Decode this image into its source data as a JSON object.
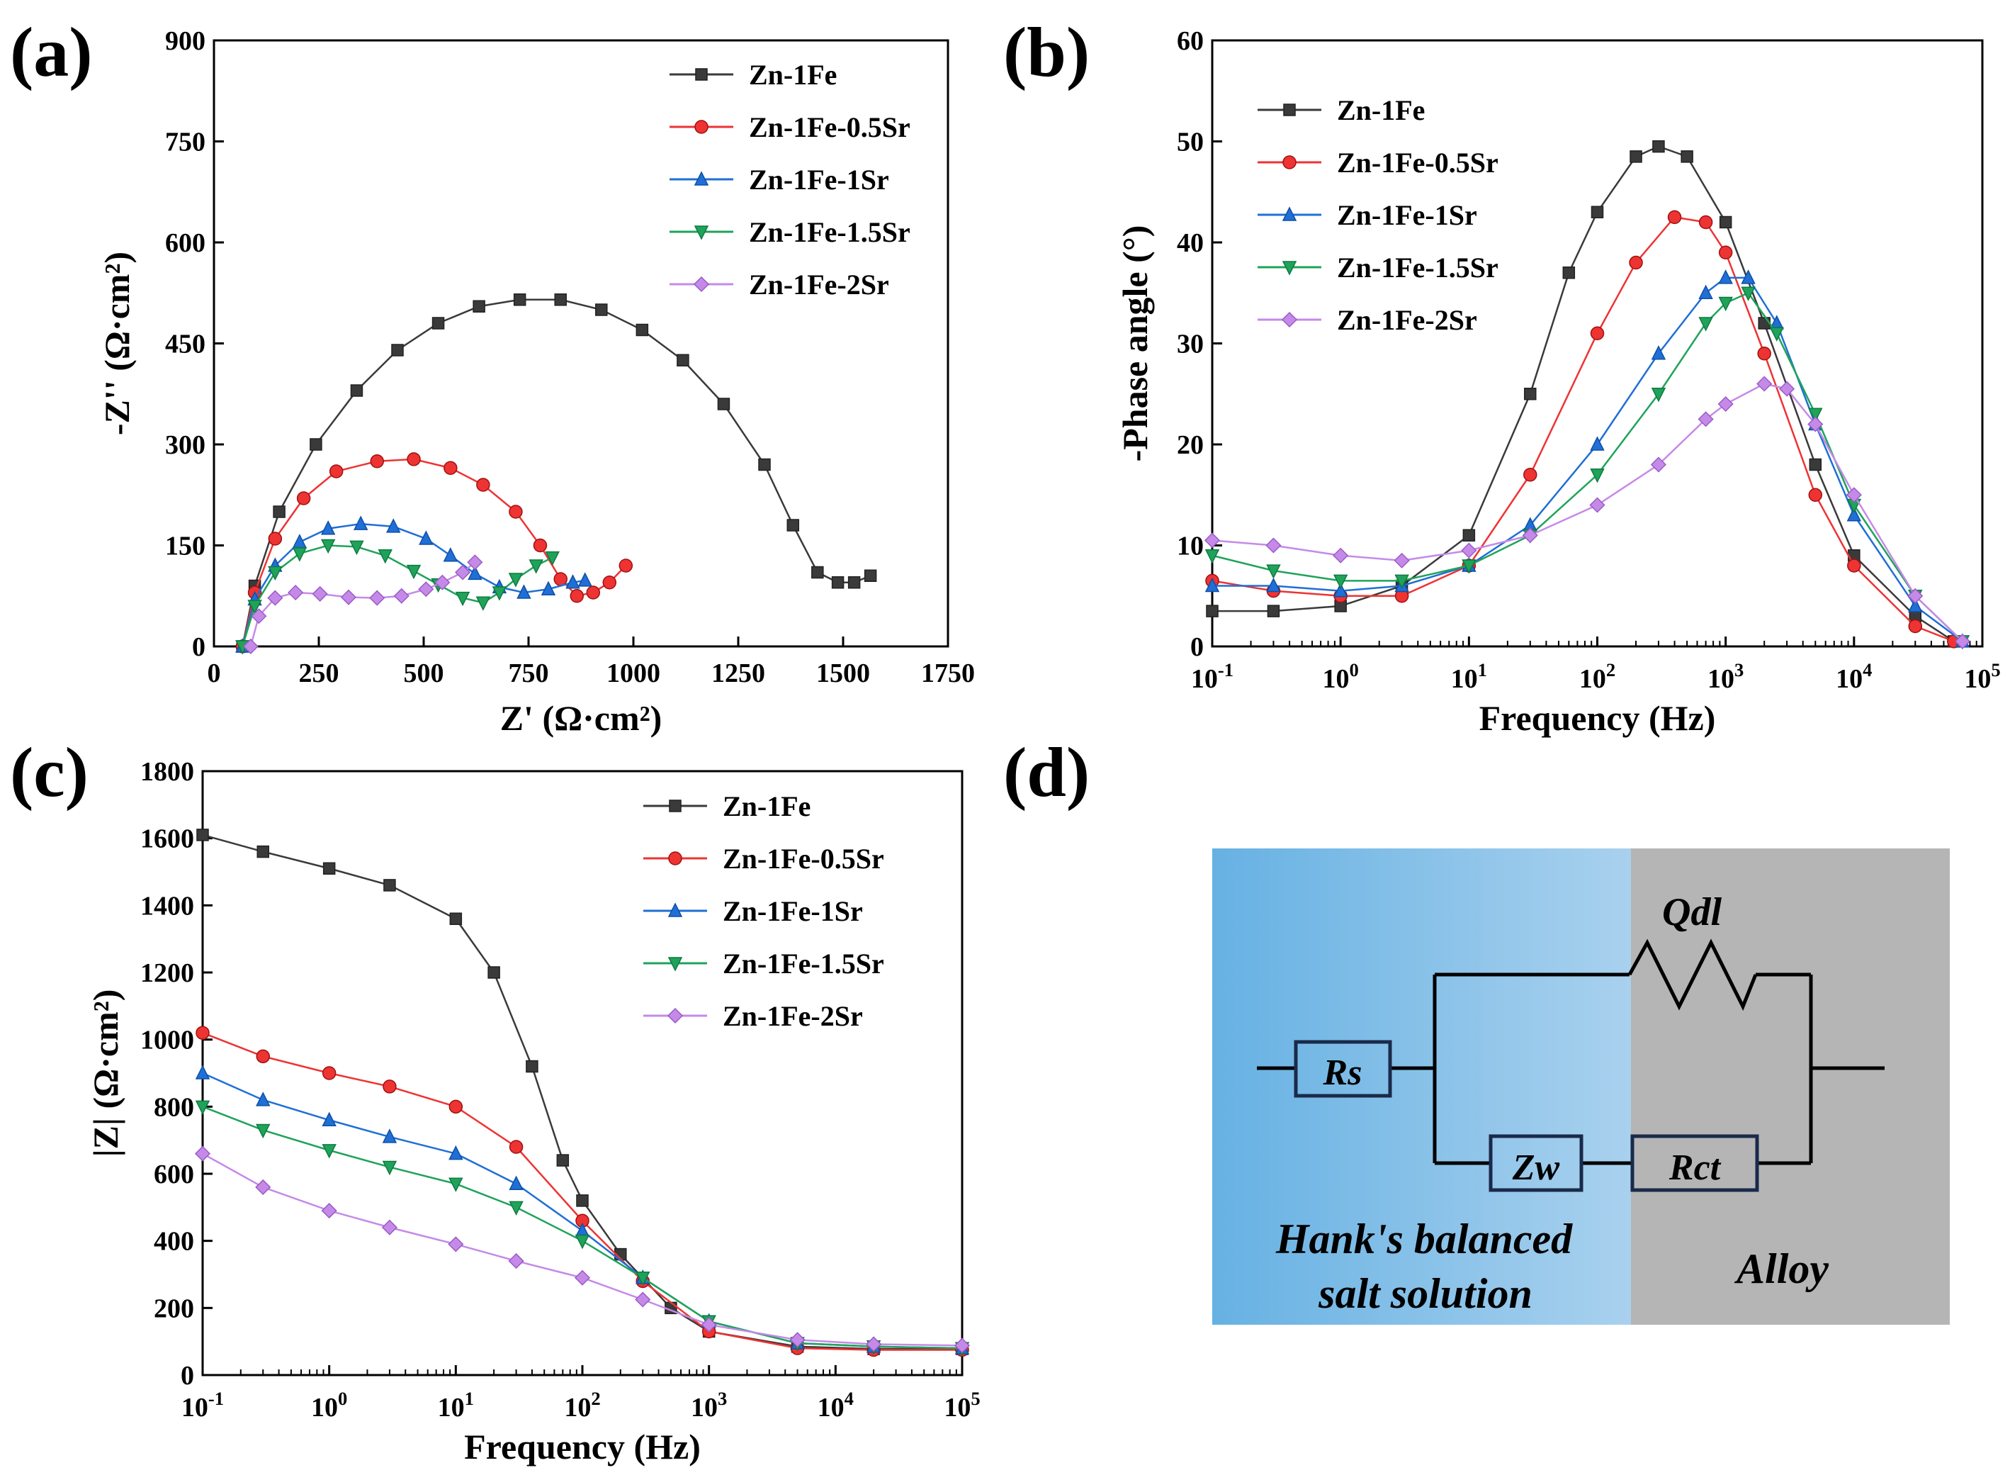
{
  "labels": {
    "a": "(a)",
    "b": "(b)",
    "c": "(c)",
    "d": "(d)"
  },
  "colors": {
    "s0": "#3a3a3a",
    "s1": "#ee3333",
    "s2": "#1f6fd6",
    "s3": "#1fa35a",
    "s4": "#c58ae8"
  },
  "legend": [
    "Zn-1Fe",
    "Zn-1Fe-0.5Sr",
    "Zn-1Fe-1Sr",
    "Zn-1Fe-1.5Sr",
    "Zn-1Fe-2Sr"
  ],
  "circuit": {
    "rs": "Rs",
    "zw": "Zw",
    "rct": "Rct",
    "qdl": "Qdl",
    "solution_line1": "Hank's balanced",
    "solution_line2": "salt solution",
    "alloy": "Alloy"
  },
  "chart_data": [
    {
      "id": "a",
      "type": "scatter",
      "title": "",
      "xlabel": "Z' (Ω·cm²)",
      "ylabel": "-Z'' (Ω·cm²)",
      "xlim": [
        0,
        1800
      ],
      "ylim": [
        0,
        900
      ],
      "xticks": [
        "0",
        "250",
        "500",
        "750",
        "1000",
        "1250",
        "1500",
        "1750"
      ],
      "yticks": [
        "0",
        "150",
        "300",
        "450",
        "600",
        "750",
        "900"
      ],
      "legend_position": "top-right",
      "series": [
        {
          "name": "Zn-1Fe",
          "x": [
            70,
            100,
            160,
            250,
            350,
            450,
            550,
            650,
            750,
            850,
            950,
            1050,
            1150,
            1250,
            1350,
            1420,
            1480,
            1530,
            1570,
            1610
          ],
          "y": [
            0,
            90,
            200,
            300,
            380,
            440,
            480,
            505,
            515,
            515,
            500,
            470,
            425,
            360,
            270,
            180,
            110,
            95,
            95,
            105
          ]
        },
        {
          "name": "Zn-1Fe-0.5Sr",
          "x": [
            70,
            100,
            150,
            220,
            300,
            400,
            490,
            580,
            660,
            740,
            800,
            850,
            890,
            930,
            970,
            1010
          ],
          "y": [
            0,
            80,
            160,
            220,
            260,
            275,
            278,
            265,
            240,
            200,
            150,
            100,
            75,
            80,
            95,
            120
          ]
        },
        {
          "name": "Zn-1Fe-1Sr",
          "x": [
            70,
            100,
            150,
            210,
            280,
            360,
            440,
            520,
            580,
            640,
            700,
            760,
            820,
            880,
            910
          ],
          "y": [
            0,
            70,
            120,
            155,
            175,
            182,
            178,
            160,
            135,
            108,
            88,
            80,
            85,
            95,
            98
          ]
        },
        {
          "name": "Zn-1Fe-1.5Sr",
          "x": [
            70,
            100,
            150,
            210,
            280,
            350,
            420,
            490,
            550,
            610,
            660,
            700,
            740,
            790,
            830
          ],
          "y": [
            0,
            60,
            110,
            138,
            150,
            148,
            135,
            112,
            92,
            72,
            65,
            80,
            100,
            120,
            132
          ]
        },
        {
          "name": "Zn-1Fe-2Sr",
          "x": [
            90,
            110,
            150,
            200,
            260,
            330,
            400,
            460,
            520,
            560,
            610,
            640
          ],
          "y": [
            0,
            45,
            72,
            80,
            78,
            73,
            72,
            75,
            85,
            95,
            110,
            125
          ]
        }
      ]
    },
    {
      "id": "b",
      "type": "scatter",
      "title": "",
      "xlabel": "Frequency (Hz)",
      "ylabel": "-Phase angle (°)",
      "xscale": "log",
      "xlim": [
        0.1,
        100000
      ],
      "ylim": [
        0,
        60
      ],
      "xticks": [
        "0.1",
        "1",
        "10",
        "100",
        "1000",
        "10000",
        "100000"
      ],
      "yticks": [
        "0",
        "10",
        "20",
        "30",
        "40",
        "50",
        "60"
      ],
      "legend_position": "top-left",
      "series": [
        {
          "name": "Zn-1Fe",
          "x": [
            0.1,
            0.3,
            1,
            3,
            10,
            30,
            60,
            100,
            200,
            300,
            500,
            1000,
            2000,
            5000,
            10000,
            30000,
            60000
          ],
          "y": [
            3.5,
            3.5,
            4,
            6,
            11,
            25,
            37,
            43,
            48.5,
            49.5,
            48.5,
            42,
            32,
            18,
            9,
            3,
            0.5
          ]
        },
        {
          "name": "Zn-1Fe-0.5Sr",
          "x": [
            0.1,
            0.3,
            1,
            3,
            10,
            30,
            100,
            200,
            400,
            700,
            1000,
            2000,
            5000,
            10000,
            30000,
            60000
          ],
          "y": [
            6.5,
            5.5,
            5,
            5,
            8,
            17,
            31,
            38,
            42.5,
            42,
            39,
            29,
            15,
            8,
            2,
            0.5
          ]
        },
        {
          "name": "Zn-1Fe-1Sr",
          "x": [
            0.1,
            0.3,
            1,
            3,
            10,
            30,
            100,
            300,
            700,
            1000,
            1500,
            2500,
            5000,
            10000,
            30000,
            70000
          ],
          "y": [
            6,
            6,
            5.5,
            6,
            8,
            12,
            20,
            29,
            35,
            36.5,
            36.5,
            32,
            22,
            13,
            4,
            0.5
          ]
        },
        {
          "name": "Zn-1Fe-1.5Sr",
          "x": [
            0.1,
            0.3,
            1,
            3,
            10,
            30,
            100,
            300,
            700,
            1000,
            1500,
            2500,
            5000,
            10000,
            30000,
            70000
          ],
          "y": [
            9,
            7.5,
            6.5,
            6.5,
            8,
            11,
            17,
            25,
            32,
            34,
            35,
            31,
            23,
            14,
            5,
            0.5
          ]
        },
        {
          "name": "Zn-1Fe-2Sr",
          "x": [
            0.1,
            0.3,
            1,
            3,
            10,
            30,
            100,
            300,
            700,
            1000,
            2000,
            3000,
            5000,
            10000,
            30000,
            70000
          ],
          "y": [
            10.5,
            10,
            9,
            8.5,
            9.5,
            11,
            14,
            18,
            22.5,
            24,
            26,
            25.5,
            22,
            15,
            5,
            0.5
          ]
        }
      ]
    },
    {
      "id": "c",
      "type": "scatter",
      "title": "",
      "xlabel": "Frequency (Hz)",
      "ylabel": "|Z| (Ω·cm²)",
      "xscale": "log",
      "xlim": [
        0.1,
        100000
      ],
      "ylim": [
        0,
        1800
      ],
      "xticks": [
        "0.1",
        "1",
        "10",
        "100",
        "1000",
        "10000",
        "100000"
      ],
      "yticks": [
        "0",
        "200",
        "400",
        "600",
        "800",
        "1000",
        "1200",
        "1400",
        "1600",
        "1800"
      ],
      "legend_position": "top-right",
      "series": [
        {
          "name": "Zn-1Fe",
          "x": [
            0.1,
            0.3,
            1,
            3,
            10,
            20,
            40,
            70,
            100,
            200,
            500,
            1000,
            5000,
            20000,
            100000
          ],
          "y": [
            1610,
            1560,
            1510,
            1460,
            1360,
            1200,
            920,
            640,
            520,
            360,
            200,
            130,
            85,
            78,
            78
          ]
        },
        {
          "name": "Zn-1Fe-0.5Sr",
          "x": [
            0.1,
            0.3,
            1,
            3,
            10,
            30,
            100,
            300,
            1000,
            5000,
            20000,
            100000
          ],
          "y": [
            1020,
            950,
            900,
            860,
            800,
            680,
            460,
            280,
            130,
            80,
            75,
            75
          ]
        },
        {
          "name": "Zn-1Fe-1Sr",
          "x": [
            0.1,
            0.3,
            1,
            3,
            10,
            30,
            100,
            300,
            1000,
            5000,
            20000,
            100000
          ],
          "y": [
            900,
            820,
            760,
            710,
            660,
            570,
            430,
            290,
            160,
            95,
            85,
            80
          ]
        },
        {
          "name": "Zn-1Fe-1.5Sr",
          "x": [
            0.1,
            0.3,
            1,
            3,
            10,
            30,
            100,
            300,
            1000,
            5000,
            20000,
            100000
          ],
          "y": [
            800,
            730,
            670,
            620,
            570,
            500,
            400,
            290,
            160,
            95,
            85,
            80
          ]
        },
        {
          "name": "Zn-1Fe-2Sr",
          "x": [
            0.1,
            0.3,
            1,
            3,
            10,
            30,
            100,
            300,
            1000,
            5000,
            20000,
            100000
          ],
          "y": [
            660,
            560,
            490,
            440,
            390,
            340,
            290,
            225,
            150,
            105,
            92,
            88
          ]
        }
      ]
    }
  ]
}
